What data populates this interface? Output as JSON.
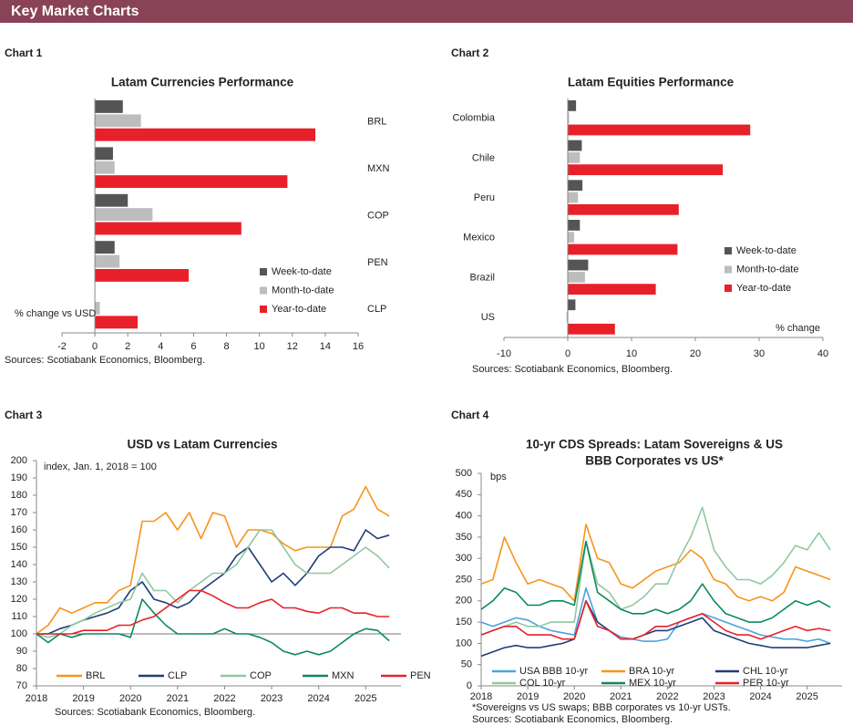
{
  "header": "Key Market Charts",
  "chart_data": [
    {
      "type": "bar",
      "horizontal": true,
      "caption": "Chart 1",
      "title": "Latam Currencies Performance",
      "axis_label": "% change vs USD",
      "categories": [
        "BRL",
        "MXN",
        "COP",
        "PEN",
        "CLP"
      ],
      "series": [
        {
          "name": "Week-to-date",
          "color": "#555555",
          "values": [
            1.7,
            1.1,
            2.0,
            1.2,
            0.0
          ]
        },
        {
          "name": "Month-to-date",
          "color": "#bdbdbd",
          "values": [
            2.8,
            1.2,
            3.5,
            1.5,
            0.3
          ]
        },
        {
          "name": "Year-to-date",
          "color": "#e8202a",
          "values": [
            13.4,
            11.7,
            8.9,
            5.7,
            2.6
          ]
        }
      ],
      "xlim": [
        -2,
        16
      ],
      "xticks": [
        -2,
        0,
        2,
        4,
        6,
        8,
        10,
        12,
        14,
        16
      ],
      "source": "Sources: Scotiabank Economics, Bloomberg."
    },
    {
      "type": "bar",
      "horizontal": true,
      "caption": "Chart 2",
      "title": "Latam Equities Performance",
      "axis_label": "% change",
      "categories": [
        "Colombia",
        "Chile",
        "Peru",
        "Mexico",
        "Brazil",
        "US"
      ],
      "series": [
        {
          "name": "Week-to-date",
          "color": "#555555",
          "values": [
            1.3,
            2.2,
            2.3,
            1.9,
            3.2,
            1.2
          ]
        },
        {
          "name": "Month-to-date",
          "color": "#bdbdbd",
          "values": [
            0.2,
            1.9,
            1.6,
            1.0,
            2.7,
            -0.2
          ]
        },
        {
          "name": "Year-to-date",
          "color": "#e8202a",
          "values": [
            28.6,
            24.3,
            17.4,
            17.2,
            13.8,
            7.4
          ]
        }
      ],
      "xlim": [
        -10,
        40
      ],
      "xticks": [
        -10,
        0,
        10,
        20,
        30,
        40
      ],
      "source": "Sources: Scotiabank Economics, Bloomberg."
    },
    {
      "type": "line",
      "caption": "Chart 3",
      "title": [
        "USD vs Latam Currencies"
      ],
      "annotation": "index, Jan. 1, 2018 = 100",
      "reference_line": 100,
      "x": [
        2018,
        2018.25,
        2018.5,
        2018.75,
        2019,
        2019.25,
        2019.5,
        2019.75,
        2020,
        2020.25,
        2020.5,
        2020.75,
        2021,
        2021.25,
        2021.5,
        2021.75,
        2022,
        2022.25,
        2022.5,
        2022.75,
        2023,
        2023.25,
        2023.5,
        2023.75,
        2024,
        2024.25,
        2024.5,
        2024.75,
        2025,
        2025.25,
        2025.5
      ],
      "series": [
        {
          "name": "BRL",
          "color": "#f7941d",
          "values": [
            100,
            105,
            115,
            112,
            115,
            118,
            118,
            125,
            128,
            165,
            165,
            170,
            160,
            170,
            155,
            170,
            168,
            150,
            160,
            160,
            158,
            152,
            148,
            150,
            150,
            150,
            168,
            172,
            185,
            172,
            168
          ]
        },
        {
          "name": "CLP",
          "color": "#1f3f77",
          "values": [
            100,
            100,
            103,
            105,
            108,
            110,
            112,
            115,
            125,
            130,
            120,
            118,
            115,
            118,
            125,
            130,
            135,
            145,
            150,
            140,
            130,
            135,
            128,
            135,
            145,
            150,
            150,
            148,
            160,
            155,
            157
          ]
        },
        {
          "name": "COP",
          "color": "#8fc9a0",
          "values": [
            100,
            98,
            100,
            105,
            108,
            112,
            115,
            118,
            120,
            135,
            125,
            125,
            118,
            125,
            130,
            135,
            135,
            140,
            150,
            160,
            160,
            150,
            140,
            135,
            135,
            135,
            140,
            145,
            150,
            145,
            138
          ]
        },
        {
          "name": "MXN",
          "color": "#0b8a5c",
          "values": [
            100,
            95,
            100,
            98,
            100,
            100,
            100,
            100,
            98,
            120,
            112,
            105,
            100,
            100,
            100,
            100,
            103,
            100,
            100,
            98,
            95,
            90,
            88,
            90,
            88,
            90,
            95,
            100,
            103,
            102,
            96
          ]
        },
        {
          "name": "PEN",
          "color": "#e8202a",
          "values": [
            100,
            100,
            100,
            100,
            102,
            102,
            102,
            105,
            105,
            108,
            110,
            115,
            120,
            125,
            125,
            122,
            118,
            115,
            115,
            118,
            120,
            115,
            115,
            113,
            112,
            115,
            115,
            112,
            112,
            110,
            110
          ]
        }
      ],
      "xlim": [
        2018,
        2025.75
      ],
      "xticks": [
        2018,
        2019,
        2020,
        2021,
        2022,
        2023,
        2024,
        2025
      ],
      "ylim": [
        70,
        200
      ],
      "yticks": [
        70,
        80,
        90,
        100,
        110,
        120,
        130,
        140,
        150,
        160,
        170,
        180,
        190,
        200
      ],
      "source": "Sources: Scotiabank Economics, Bloomberg."
    },
    {
      "type": "line",
      "caption": "Chart 4",
      "title": [
        "10-yr CDS Spreads: Latam Sovereigns & US",
        "BBB Corporates vs US*"
      ],
      "annotation": "bps",
      "x": [
        2018,
        2018.25,
        2018.5,
        2018.75,
        2019,
        2019.25,
        2019.5,
        2019.75,
        2020,
        2020.25,
        2020.5,
        2020.75,
        2021,
        2021.25,
        2021.5,
        2021.75,
        2022,
        2022.25,
        2022.5,
        2022.75,
        2023,
        2023.25,
        2023.5,
        2023.75,
        2024,
        2024.25,
        2024.5,
        2024.75,
        2025,
        2025.25,
        2025.5
      ],
      "series": [
        {
          "name": "USA BBB 10-yr",
          "color": "#4aa3df",
          "values": [
            150,
            140,
            150,
            160,
            155,
            140,
            130,
            125,
            120,
            230,
            150,
            130,
            115,
            110,
            105,
            105,
            110,
            150,
            160,
            170,
            160,
            150,
            140,
            130,
            120,
            115,
            110,
            110,
            105,
            110,
            100
          ]
        },
        {
          "name": "BRA 10-yr",
          "color": "#f7941d",
          "values": [
            240,
            250,
            350,
            290,
            240,
            250,
            240,
            230,
            200,
            380,
            300,
            290,
            240,
            230,
            250,
            270,
            280,
            290,
            320,
            300,
            250,
            240,
            210,
            200,
            210,
            200,
            220,
            280,
            270,
            260,
            250
          ]
        },
        {
          "name": "CHL 10-yr",
          "color": "#1f3f77",
          "values": [
            70,
            80,
            90,
            95,
            90,
            90,
            95,
            100,
            110,
            200,
            150,
            130,
            110,
            110,
            120,
            130,
            130,
            140,
            150,
            160,
            130,
            120,
            110,
            100,
            95,
            90,
            90,
            90,
            90,
            95,
            100
          ]
        },
        {
          "name": "COL 10-yr",
          "color": "#8fc9a0",
          "values": [
            120,
            130,
            140,
            150,
            140,
            140,
            150,
            150,
            150,
            340,
            240,
            220,
            180,
            190,
            210,
            240,
            240,
            300,
            350,
            420,
            320,
            280,
            250,
            250,
            240,
            260,
            290,
            330,
            320,
            360,
            320
          ]
        },
        {
          "name": "MEX 10-yr",
          "color": "#0b8a5c",
          "values": [
            180,
            200,
            230,
            220,
            190,
            190,
            200,
            200,
            190,
            340,
            220,
            200,
            180,
            170,
            170,
            180,
            170,
            180,
            200,
            240,
            200,
            170,
            160,
            150,
            150,
            160,
            180,
            200,
            190,
            200,
            185
          ]
        },
        {
          "name": "PER 10-yr",
          "color": "#e8202a",
          "values": [
            120,
            130,
            140,
            140,
            120,
            120,
            120,
            110,
            110,
            200,
            140,
            130,
            110,
            110,
            120,
            140,
            140,
            150,
            160,
            170,
            150,
            130,
            120,
            120,
            110,
            120,
            130,
            140,
            130,
            135,
            130
          ]
        }
      ],
      "xlim": [
        2018,
        2025.75
      ],
      "xticks": [
        2018,
        2019,
        2020,
        2021,
        2022,
        2023,
        2024,
        2025
      ],
      "ylim": [
        0,
        500
      ],
      "yticks": [
        0,
        50,
        100,
        150,
        200,
        250,
        300,
        350,
        400,
        450,
        500
      ],
      "footnote": "*Sovereigns vs US swaps; BBB corporates vs 10-yr USTs.",
      "source": "Sources: Scotiabank Economics, Bloomberg."
    }
  ]
}
